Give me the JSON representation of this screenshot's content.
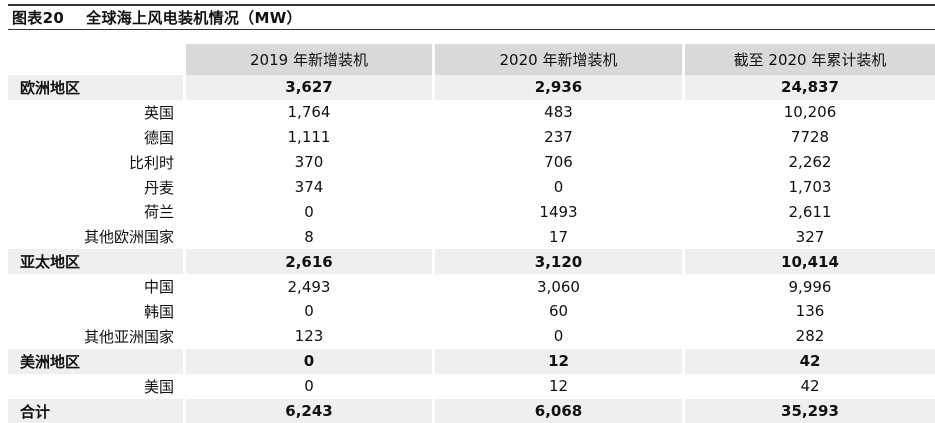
{
  "title": "图表20    全球海上风电装机情况（MW）",
  "table": {
    "headers": [
      "",
      "2019 年新增装机",
      "2020 年新增装机",
      "截至 2020 年累计装机"
    ],
    "rows": [
      {
        "name": "欧洲地区",
        "kind": "region",
        "v2019": "3,627",
        "v2020": "2,936",
        "cumulative": "24,837"
      },
      {
        "name": "英国",
        "kind": "country",
        "v2019": "1,764",
        "v2020": "483",
        "cumulative": "10,206"
      },
      {
        "name": "德国",
        "kind": "country",
        "v2019": "1,111",
        "v2020": "237",
        "cumulative": "7728"
      },
      {
        "name": "比利时",
        "kind": "country",
        "v2019": "370",
        "v2020": "706",
        "cumulative": "2,262"
      },
      {
        "name": "丹麦",
        "kind": "country",
        "v2019": "374",
        "v2020": "0",
        "cumulative": "1,703"
      },
      {
        "name": "荷兰",
        "kind": "country",
        "v2019": "0",
        "v2020": "1493",
        "cumulative": "2,611"
      },
      {
        "name": "其他欧洲国家",
        "kind": "country",
        "v2019": "8",
        "v2020": "17",
        "cumulative": "327"
      },
      {
        "name": "亚太地区",
        "kind": "region",
        "v2019": "2,616",
        "v2020": "3,120",
        "cumulative": "10,414"
      },
      {
        "name": "中国",
        "kind": "country",
        "v2019": "2,493",
        "v2020": "3,060",
        "cumulative": "9,996"
      },
      {
        "name": "韩国",
        "kind": "country",
        "v2019": "0",
        "v2020": "60",
        "cumulative": "136"
      },
      {
        "name": "其他亚洲国家",
        "kind": "country",
        "v2019": "123",
        "v2020": "0",
        "cumulative": "282"
      },
      {
        "name": "美洲地区",
        "kind": "region",
        "v2019": "0",
        "v2020": "12",
        "cumulative": "42"
      },
      {
        "name": "美国",
        "kind": "country",
        "v2019": "0",
        "v2020": "12",
        "cumulative": "42"
      },
      {
        "name": "合计",
        "kind": "total",
        "v2019": "6,243",
        "v2020": "6,068",
        "cumulative": "35,293"
      }
    ]
  }
}
